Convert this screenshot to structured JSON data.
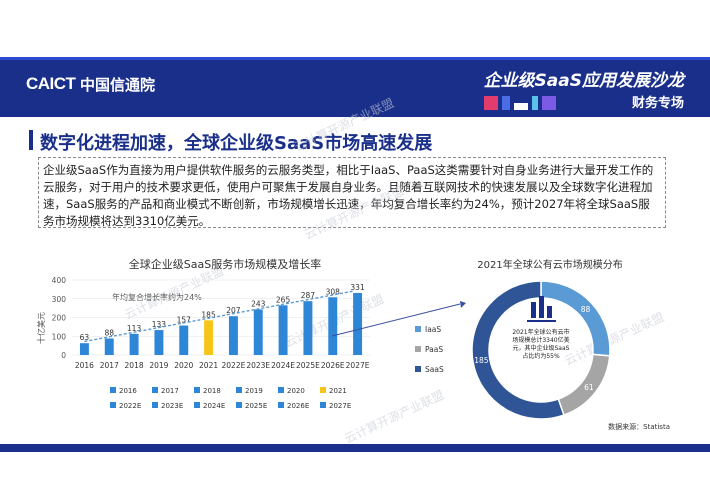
{
  "header": {
    "logo": "CAICT",
    "logo_cn": "中国信通院",
    "title": "企业级SaaS应用发展沙龙",
    "subtitle": "财务专场"
  },
  "heading": "数字化进程加速，全球企业级SaaS市场高速发展",
  "paragraph": "企业级SaaS作为直接为用户提供软件服务的云服务类型，相比于IaaS、PaaS这类需要针对自身业务进行大量开发工作的云服务，对于用户的技术要求更低，使用户可聚焦于发展自身业务。且随着互联网技术的快速发展以及全球数字化进程加速，SaaS服务的产品和商业模式不断创新，市场规模增长迅速，年均复合增长率约为24%，预计2027年将全球SaaS服务市场规模将达到3310亿美元。",
  "watermark": "云计算开源产业联盟",
  "source": "数据来源：Statista",
  "colors": {
    "brand": "#1a2f8a",
    "bar": "#2e86d6",
    "highlight": "#f5c518",
    "donut_saas": "#2f5597",
    "donut_iaas": "#5b9bd5",
    "donut_paas": "#a5a5a5"
  },
  "chart_data": [
    {
      "type": "bar",
      "title": "全球企业级SaaS服务市场规模及增长率",
      "ylabel": "十亿美元",
      "annotation": "年均复合增长率约为24%",
      "categories": [
        "2016",
        "2017",
        "2018",
        "2019",
        "2020",
        "2021",
        "2022E",
        "2023E",
        "2024E",
        "2025E",
        "2026E",
        "2027E"
      ],
      "values": [
        63,
        88,
        113,
        133,
        157,
        185,
        207,
        243,
        265,
        287,
        308,
        331
      ],
      "highlight_index": 5,
      "yticks": [
        0,
        100,
        200,
        300,
        400
      ],
      "ylim": [
        0,
        400
      ],
      "legend": [
        "2016",
        "2017",
        "2018",
        "2019",
        "2020",
        "2021",
        "2022E",
        "2023E",
        "2024E",
        "2025E",
        "2026E",
        "2027E"
      ]
    },
    {
      "type": "pie",
      "title": "2021年全球公有云市场规模分布",
      "slices": [
        {
          "name": "IaaS",
          "value": 88
        },
        {
          "name": "PaaS",
          "value": 61
        },
        {
          "name": "SaaS",
          "value": 185
        }
      ],
      "center_text": [
        "2021年全球公有云市",
        "场规模总计3340亿美",
        "元，其中企业级SaaS",
        "占比约为55%"
      ]
    }
  ]
}
